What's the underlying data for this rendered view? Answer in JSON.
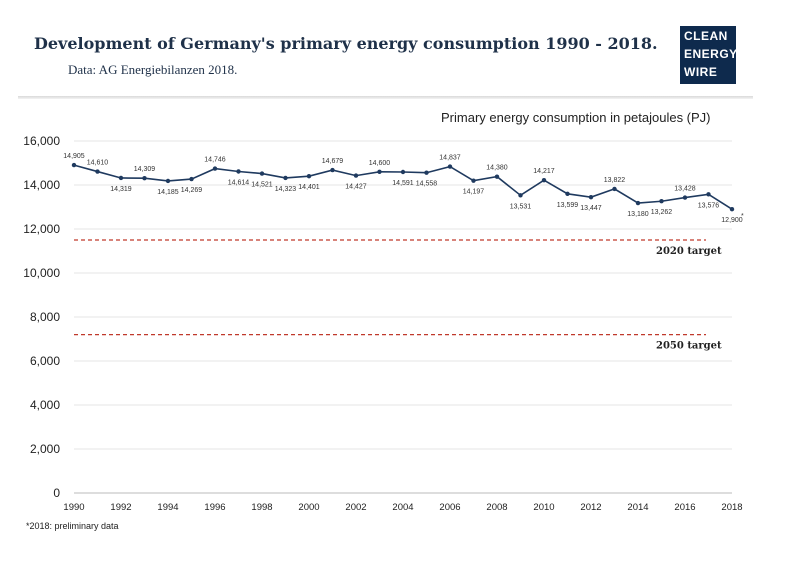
{
  "header": {
    "title": "Development of Germany's primary energy consumption 1990 - 2018.",
    "subtitle": "Data: AG Energiebilanzen 2018."
  },
  "logo": {
    "lines": [
      "CLEAN",
      "ENERGY",
      "WIRE"
    ],
    "background": "#0e2a4d"
  },
  "chart_data": {
    "type": "line",
    "title": "Primary energy consumption in petajoules (PJ)",
    "xlabel": "",
    "ylabel": "",
    "x": [
      1990,
      1991,
      1992,
      1993,
      1994,
      1995,
      1996,
      1997,
      1998,
      1999,
      2000,
      2001,
      2002,
      2003,
      2004,
      2005,
      2006,
      2007,
      2008,
      2009,
      2010,
      2011,
      2012,
      2013,
      2014,
      2015,
      2016,
      2017,
      2018
    ],
    "series": [
      {
        "values": [
          14905,
          14610,
          14319,
          14309,
          14185,
          14269,
          14746,
          14614,
          14521,
          14323,
          14401,
          14679,
          14427,
          14600,
          14591,
          14558,
          14837,
          14197,
          14380,
          13531,
          14217,
          13599,
          13447,
          13822,
          13180,
          13262,
          13428,
          13576,
          12900
        ],
        "color": "#1f3a5f"
      }
    ],
    "ylim": [
      0,
      16000
    ],
    "yticks": [
      0,
      2000,
      4000,
      6000,
      8000,
      10000,
      12000,
      14000,
      16000
    ],
    "ytick_labels": [
      "0",
      "2,000",
      "4,000",
      "6,000",
      "8,000",
      "10,000",
      "12,000",
      "14,000",
      "16,000"
    ],
    "xticks": [
      1990,
      1992,
      1994,
      1996,
      1998,
      2000,
      2002,
      2004,
      2006,
      2008,
      2010,
      2012,
      2014,
      2016,
      2018
    ],
    "xtick_labels": [
      "1990",
      "1992",
      "1994",
      "1996",
      "1998",
      "2000",
      "2002",
      "2004",
      "2006",
      "2008",
      "2010",
      "2012",
      "2014",
      "2016",
      "2018"
    ],
    "data_labels": [
      "14,905",
      "14,610",
      "14,319",
      "14,309",
      "14,185",
      "14,269",
      "14,746",
      "14,614",
      "14,521",
      "14,323",
      "14,401",
      "14,679",
      "14,427",
      "14,600",
      "14,591",
      "14,558",
      "14,837",
      "14,197",
      "14,380",
      "13,531",
      "14,217",
      "13,599",
      "13,447",
      "13,822",
      "13,180",
      "13,262",
      "13,428",
      "13,576",
      "12,900"
    ],
    "label_positions": [
      "above",
      "above",
      "below",
      "above",
      "below",
      "below",
      "above",
      "below",
      "below",
      "below",
      "below",
      "above",
      "below",
      "above",
      "below",
      "below",
      "above",
      "below",
      "above",
      "below",
      "above",
      "below",
      "below",
      "above",
      "below",
      "below",
      "above",
      "below",
      "below"
    ],
    "last_point_marker": "*",
    "targets": [
      {
        "label": "2020 target",
        "value": 11500,
        "color": "#c0392b"
      },
      {
        "label": "2050 target",
        "value": 7200,
        "color": "#c0392b"
      }
    ],
    "grid": true
  },
  "footnote": "*2018: preliminary data"
}
